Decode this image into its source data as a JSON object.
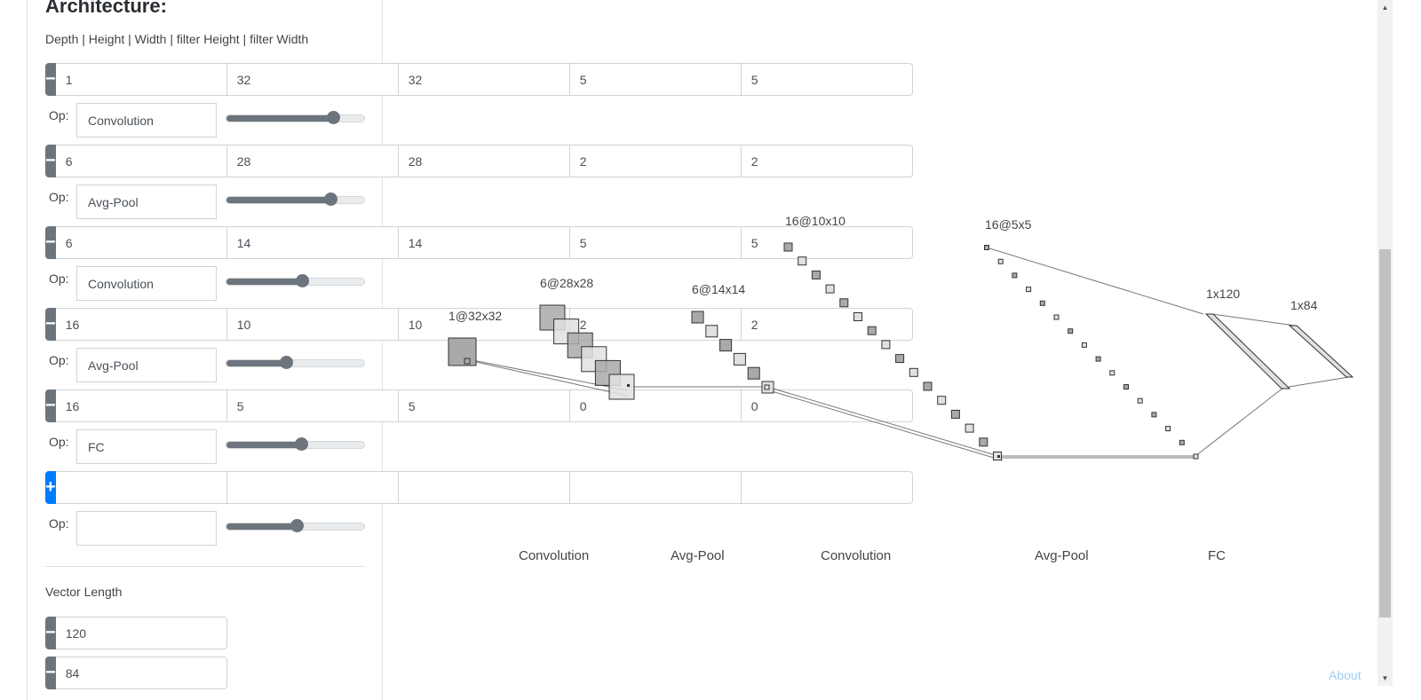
{
  "sidebar": {
    "title": "Architecture:",
    "subtitle": "Depth | Height | Width | filter Height | filter Width",
    "op_label": "Op:",
    "layers": [
      {
        "values": [
          "1",
          "32",
          "32",
          "5",
          "5"
        ],
        "op": "Convolution",
        "slider": 0.77
      },
      {
        "values": [
          "6",
          "28",
          "28",
          "2",
          "2"
        ],
        "op": "Avg-Pool",
        "slider": 0.75
      },
      {
        "values": [
          "6",
          "14",
          "14",
          "5",
          "5"
        ],
        "op": "Convolution",
        "slider": 0.55
      },
      {
        "values": [
          "16",
          "10",
          "10",
          "2",
          "2"
        ],
        "op": "Avg-Pool",
        "slider": 0.43
      },
      {
        "values": [
          "16",
          "5",
          "5",
          "0",
          "0"
        ],
        "op": "FC",
        "slider": 0.54
      }
    ],
    "new_layer": {
      "values": [
        "",
        "",
        "",
        "",
        ""
      ],
      "op": "",
      "slider": 0.51
    },
    "vector_label": "Vector Length",
    "vectors": [
      "120",
      "84"
    ]
  },
  "diagram": {
    "layer_labels": [
      "1@32x32",
      "6@28x28",
      "6@14x14",
      "16@10x10",
      "16@5x5",
      "1x120",
      "1x84"
    ],
    "op_labels": [
      "Convolution",
      "Avg-Pool",
      "Convolution",
      "Avg-Pool",
      "FC"
    ]
  },
  "footer": {
    "about": "About"
  },
  "colors": {
    "dark_fill": "#a9a9a9",
    "light_fill": "#e0e0e0",
    "button_gray": "#6c757d",
    "button_blue": "#007bff"
  }
}
